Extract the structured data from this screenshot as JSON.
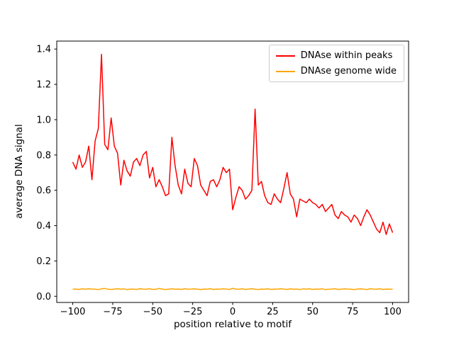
{
  "figure": {
    "background": "#ffffff"
  },
  "legend": {
    "items": [
      {
        "label": "DNAse within peaks",
        "color": "#ff0000"
      },
      {
        "label": "DNAse genome wide",
        "color": "#ffa500"
      }
    ]
  },
  "chart_data": {
    "type": "line",
    "title": "",
    "xlabel": "position relative to motif",
    "ylabel": "average DNA signal",
    "grid": false,
    "legend_position": "upper right",
    "xlim": [
      -110,
      110
    ],
    "ylim": [
      -0.035,
      1.445
    ],
    "xticks": {
      "pos": [
        -100,
        -75,
        -50,
        -25,
        0,
        25,
        50,
        75,
        100
      ],
      "labels": [
        "−100",
        "−75",
        "−50",
        "−25",
        "0",
        "25",
        "50",
        "75",
        "100"
      ]
    },
    "yticks": {
      "pos": [
        0.0,
        0.2,
        0.4,
        0.6,
        0.8,
        1.0,
        1.2,
        1.4
      ],
      "labels": [
        "0.0",
        "0.2",
        "0.4",
        "0.6",
        "0.8",
        "1.0",
        "1.2",
        "1.4"
      ]
    },
    "x": [
      -100,
      -98,
      -96,
      -94,
      -92,
      -90,
      -88,
      -86,
      -84,
      -82,
      -80,
      -78,
      -76,
      -74,
      -72,
      -70,
      -68,
      -66,
      -64,
      -62,
      -60,
      -58,
      -56,
      -54,
      -52,
      -50,
      -48,
      -46,
      -44,
      -42,
      -40,
      -38,
      -36,
      -34,
      -32,
      -30,
      -28,
      -26,
      -24,
      -22,
      -20,
      -18,
      -16,
      -14,
      -12,
      -10,
      -8,
      -6,
      -4,
      -2,
      0,
      2,
      4,
      6,
      8,
      10,
      12,
      14,
      16,
      18,
      20,
      22,
      24,
      26,
      28,
      30,
      32,
      34,
      36,
      38,
      40,
      42,
      44,
      46,
      48,
      50,
      52,
      54,
      56,
      58,
      60,
      62,
      64,
      66,
      68,
      70,
      72,
      74,
      76,
      78,
      80,
      82,
      84,
      86,
      88,
      90,
      92,
      94,
      96,
      98,
      100
    ],
    "series": [
      {
        "name": "DNAse within peaks",
        "color": "#ff0000",
        "values": [
          0.76,
          0.72,
          0.8,
          0.73,
          0.76,
          0.85,
          0.66,
          0.88,
          0.95,
          1.37,
          0.86,
          0.83,
          1.01,
          0.85,
          0.81,
          0.63,
          0.77,
          0.71,
          0.68,
          0.76,
          0.78,
          0.74,
          0.8,
          0.82,
          0.67,
          0.73,
          0.62,
          0.66,
          0.62,
          0.57,
          0.58,
          0.9,
          0.74,
          0.63,
          0.58,
          0.72,
          0.64,
          0.62,
          0.78,
          0.74,
          0.63,
          0.6,
          0.57,
          0.65,
          0.66,
          0.62,
          0.66,
          0.73,
          0.7,
          0.72,
          0.49,
          0.56,
          0.62,
          0.6,
          0.55,
          0.57,
          0.6,
          1.06,
          0.63,
          0.65,
          0.57,
          0.53,
          0.52,
          0.58,
          0.55,
          0.53,
          0.61,
          0.7,
          0.58,
          0.55,
          0.45,
          0.55,
          0.54,
          0.53,
          0.55,
          0.53,
          0.52,
          0.5,
          0.52,
          0.48,
          0.5,
          0.52,
          0.46,
          0.44,
          0.48,
          0.46,
          0.45,
          0.42,
          0.46,
          0.44,
          0.4,
          0.45,
          0.49,
          0.46,
          0.42,
          0.38,
          0.36,
          0.42,
          0.35,
          0.41,
          0.36
        ]
      },
      {
        "name": "DNAse genome wide",
        "color": "#ffa500",
        "values": [
          0.04,
          0.041,
          0.039,
          0.042,
          0.04,
          0.043,
          0.041,
          0.04,
          0.038,
          0.042,
          0.044,
          0.04,
          0.039,
          0.041,
          0.043,
          0.04,
          0.042,
          0.038,
          0.041,
          0.04,
          0.039,
          0.043,
          0.041,
          0.04,
          0.042,
          0.039,
          0.04,
          0.044,
          0.041,
          0.038,
          0.04,
          0.042,
          0.04,
          0.041,
          0.039,
          0.043,
          0.04,
          0.041,
          0.042,
          0.04,
          0.038,
          0.041,
          0.04,
          0.043,
          0.039,
          0.041,
          0.04,
          0.042,
          0.041,
          0.039,
          0.045,
          0.041,
          0.04,
          0.042,
          0.039,
          0.041,
          0.043,
          0.04,
          0.038,
          0.041,
          0.04,
          0.042,
          0.039,
          0.041,
          0.04,
          0.043,
          0.041,
          0.039,
          0.042,
          0.04,
          0.041,
          0.038,
          0.042,
          0.04,
          0.043,
          0.039,
          0.041,
          0.04,
          0.042,
          0.038,
          0.04,
          0.041,
          0.043,
          0.039,
          0.04,
          0.042,
          0.041,
          0.04,
          0.038,
          0.041,
          0.042,
          0.04,
          0.039,
          0.043,
          0.041,
          0.04,
          0.042,
          0.039,
          0.041,
          0.04,
          0.04
        ]
      }
    ]
  }
}
